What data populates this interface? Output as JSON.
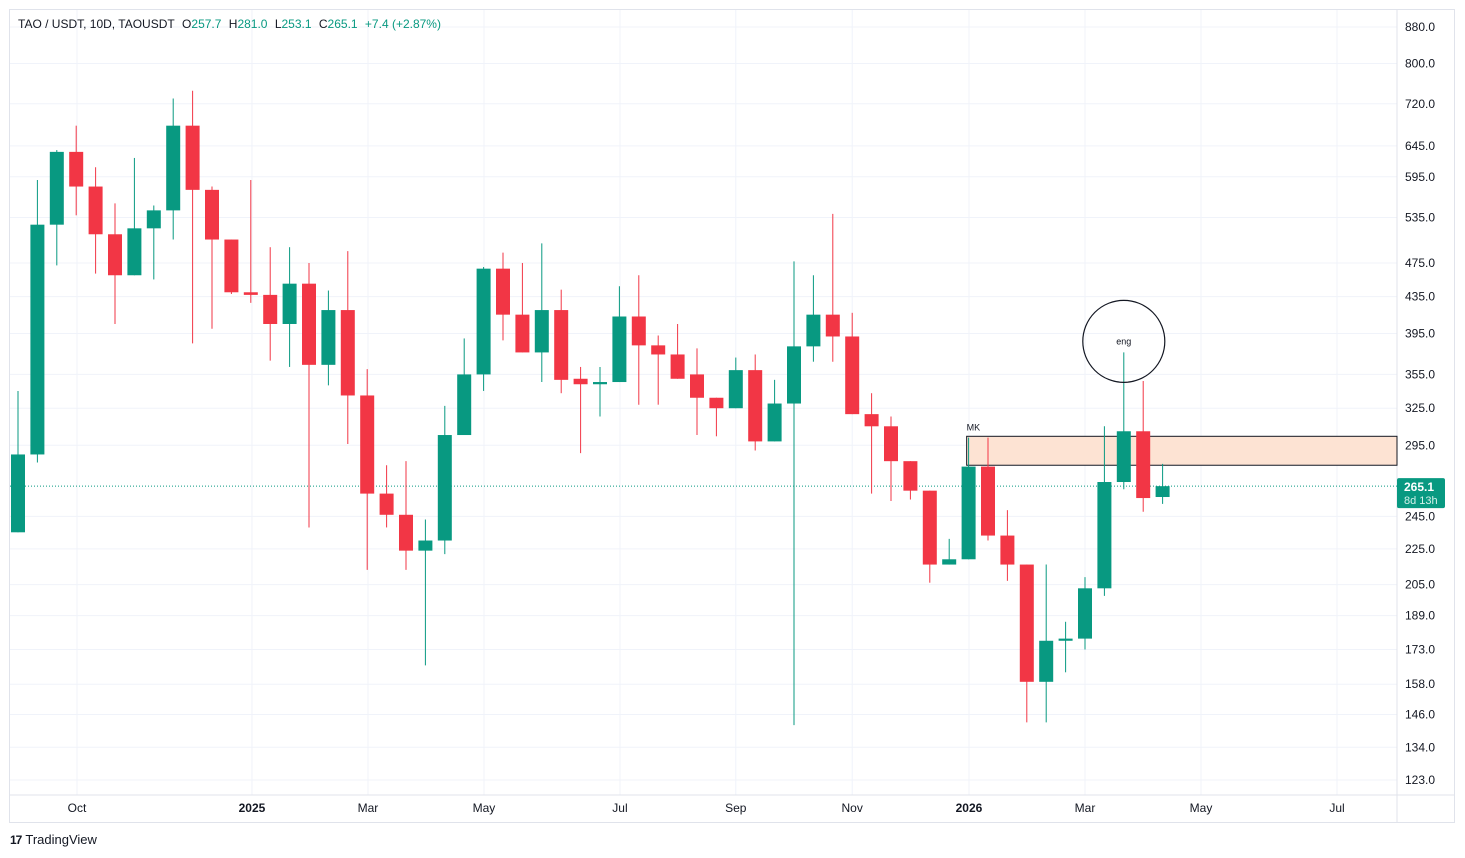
{
  "header": {
    "symbol": "TAO / USDT, 10D, TAOUSDT",
    "open_label": "O",
    "open": "257.7",
    "high_label": "H",
    "high": "281.0",
    "low_label": "L",
    "low": "253.1",
    "close_label": "C",
    "close": "265.1",
    "change": "+7.4 (+2.87%)"
  },
  "price_label": {
    "price": "265.1",
    "countdown": "8d 13h"
  },
  "branding": {
    "name": "TradingView"
  },
  "colors": {
    "up": "#089981",
    "down": "#f23645",
    "zone_fill": "#fde3d3",
    "grid": "#f0f3fa"
  },
  "chart_data": {
    "type": "candlestick",
    "title": "TAO / USDT, 10D",
    "y_scale": "log",
    "ylim": [
      116,
      920
    ],
    "y_ticks": [
      880.0,
      800.0,
      720.0,
      645.0,
      595.0,
      535.0,
      475.0,
      435.0,
      395.0,
      355.0,
      325.0,
      295.0,
      245.0,
      225.0,
      205.0,
      189.0,
      173.0,
      158.0,
      146.0,
      134.0,
      123.0
    ],
    "x_ticks": [
      {
        "label": "Oct",
        "index": 3.04,
        "bold": false
      },
      {
        "label": "2025",
        "index": 12.06,
        "bold": true
      },
      {
        "label": "Mar",
        "index": 18.04,
        "bold": false
      },
      {
        "label": "May",
        "index": 24.02,
        "bold": false
      },
      {
        "label": "Jul",
        "index": 31.03,
        "bold": false
      },
      {
        "label": "Sep",
        "index": 37.0,
        "bold": false
      },
      {
        "label": "Nov",
        "index": 43.0,
        "bold": false
      },
      {
        "label": "2026",
        "index": 49.02,
        "bold": true
      },
      {
        "label": "Mar",
        "index": 55.0,
        "bold": false
      },
      {
        "label": "May",
        "index": 60.98,
        "bold": false
      },
      {
        "label": "Jul",
        "index": 67.99,
        "bold": false
      }
    ],
    "ohlc": [
      [
        235,
        288,
        340,
        235
      ],
      [
        288,
        525,
        590,
        282
      ],
      [
        525,
        635,
        638,
        472
      ],
      [
        635,
        580,
        680,
        538
      ],
      [
        580,
        512,
        610,
        462
      ],
      [
        512,
        460,
        555,
        405
      ],
      [
        460,
        520,
        625,
        460
      ],
      [
        520,
        545,
        552,
        455
      ],
      [
        545,
        680,
        730,
        505
      ],
      [
        680,
        575,
        745,
        385
      ],
      [
        575,
        505,
        580,
        400
      ],
      [
        505,
        440,
        505,
        438
      ],
      [
        440,
        437,
        590,
        428
      ],
      [
        437,
        405,
        495,
        368
      ],
      [
        405,
        450,
        495,
        362
      ],
      [
        450,
        364,
        475,
        238
      ],
      [
        364,
        420,
        442,
        345
      ],
      [
        420,
        336,
        490,
        296
      ],
      [
        336,
        260,
        360,
        213
      ],
      [
        260,
        246,
        280,
        238
      ],
      [
        246,
        224,
        283,
        213
      ],
      [
        224,
        230,
        243,
        166
      ],
      [
        230,
        303,
        327,
        222
      ],
      [
        303,
        355,
        390,
        307
      ],
      [
        355,
        468,
        470,
        340
      ],
      [
        468,
        415,
        488,
        388
      ],
      [
        415,
        376,
        475,
        376
      ],
      [
        376,
        420,
        500,
        348
      ],
      [
        420,
        350,
        443,
        338
      ],
      [
        351,
        346,
        362,
        289
      ],
      [
        346,
        348,
        362,
        318
      ],
      [
        348,
        413,
        447,
        348
      ],
      [
        413,
        383,
        460,
        328
      ],
      [
        383,
        374,
        393,
        328
      ],
      [
        374,
        351,
        405,
        351
      ],
      [
        355,
        334,
        380,
        303
      ],
      [
        334,
        325,
        334,
        302
      ],
      [
        325,
        359,
        371,
        325
      ],
      [
        359,
        298,
        374,
        291
      ],
      [
        298,
        329,
        350,
        298
      ],
      [
        329,
        382,
        477,
        142
      ],
      [
        382,
        415,
        460,
        367
      ],
      [
        415,
        392,
        540,
        367
      ],
      [
        392,
        320,
        417,
        320
      ],
      [
        320,
        310,
        338,
        260
      ],
      [
        310,
        283,
        318,
        255
      ],
      [
        283,
        262,
        283,
        256
      ],
      [
        262,
        216,
        262,
        206
      ],
      [
        216,
        219,
        231,
        216
      ],
      [
        219,
        279,
        301,
        219
      ],
      [
        279,
        233,
        301,
        230
      ],
      [
        233,
        216,
        249,
        207
      ],
      [
        216,
        159,
        216,
        143
      ],
      [
        159,
        177,
        216,
        143
      ],
      [
        177,
        178,
        186,
        163
      ],
      [
        178,
        203,
        209,
        173
      ],
      [
        203,
        268,
        310,
        199
      ],
      [
        268,
        306,
        376,
        263
      ],
      [
        306,
        257,
        349,
        248
      ],
      [
        257.7,
        265.1,
        281.0,
        253.1
      ]
    ],
    "current_price": 265.1,
    "annotations": [
      {
        "type": "zone",
        "label": "MK",
        "from_index": 48.9,
        "price_low": 280,
        "price_high": 302
      },
      {
        "type": "circle",
        "label": "eng",
        "index": 57,
        "price": 385
      }
    ]
  }
}
